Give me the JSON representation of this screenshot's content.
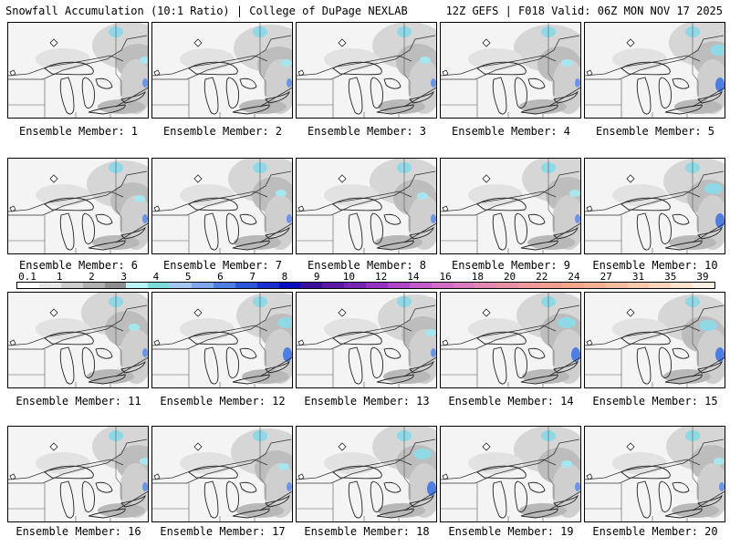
{
  "header": {
    "title": "Snowfall Accumulation (10:1 Ratio) | College of DuPage NEXLAB",
    "run_info": "12Z GEFS | F018 Valid: 06Z MON NOV 17 2025"
  },
  "colorbar": {
    "labels": [
      "0.1",
      "1",
      "2",
      "3",
      "4",
      "5",
      "6",
      "7",
      "8",
      "9",
      "10",
      "12",
      "14",
      "16",
      "18",
      "20",
      "22",
      "24",
      "27",
      "31",
      "35",
      "39"
    ],
    "colors": [
      "#ffffff",
      "#e6e6e6",
      "#cccccc",
      "#b0b0b0",
      "#8e8e8e",
      "#b9f3f3",
      "#7fdada",
      "#a6c6f2",
      "#7fa8ec",
      "#4f7ee2",
      "#2d55d8",
      "#1a2fd0",
      "#0a0cc2",
      "#3c0f9c",
      "#5a1aa6",
      "#7726b3",
      "#9333c0",
      "#ad46c9",
      "#c25ecb",
      "#cf6fc7",
      "#d97cbf",
      "#e08ab3",
      "#e692a6",
      "#ec9a9a",
      "#ef9f8f",
      "#f2a888",
      "#f4b292",
      "#f6bd9e",
      "#f8c9ac",
      "#fad6bc",
      "#fce3cd",
      "#fdf0e2"
    ],
    "icon": "colorbar-legend"
  },
  "panels": [
    {
      "label": "Ensemble Member: 1"
    },
    {
      "label": "Ensemble Member: 2"
    },
    {
      "label": "Ensemble Member: 3"
    },
    {
      "label": "Ensemble Member: 4"
    },
    {
      "label": "Ensemble Member: 5"
    },
    {
      "label": "Ensemble Member: 6"
    },
    {
      "label": "Ensemble Member: 7"
    },
    {
      "label": "Ensemble Member: 8"
    },
    {
      "label": "Ensemble Member: 9"
    },
    {
      "label": "Ensemble Member: 10"
    },
    {
      "label": "Ensemble Member: 11"
    },
    {
      "label": "Ensemble Member: 12"
    },
    {
      "label": "Ensemble Member: 13"
    },
    {
      "label": "Ensemble Member: 14"
    },
    {
      "label": "Ensemble Member: 15"
    },
    {
      "label": "Ensemble Member: 16"
    },
    {
      "label": "Ensemble Member: 17"
    },
    {
      "label": "Ensemble Member: 18"
    },
    {
      "label": "Ensemble Member: 19"
    },
    {
      "label": "Ensemble Member: 20"
    }
  ]
}
